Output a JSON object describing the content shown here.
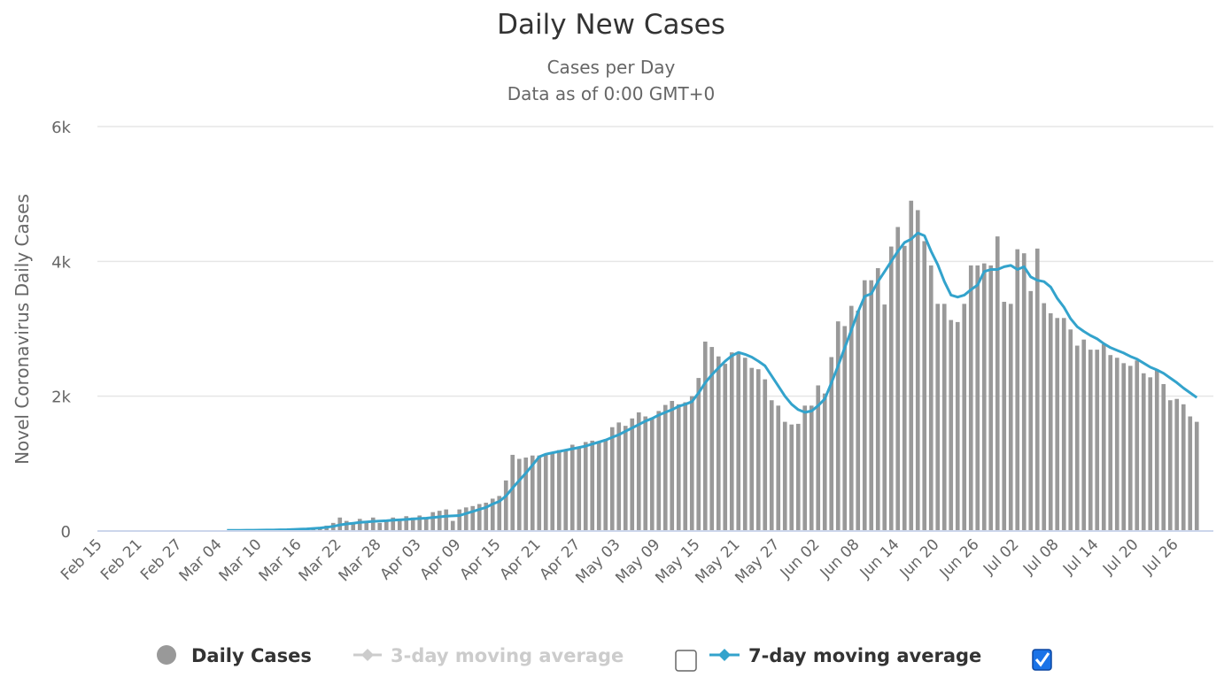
{
  "chart_data": {
    "type": "bar",
    "title": "Daily New Cases",
    "subtitle_lines": [
      "Cases per Day",
      "Data as of 0:00 GMT+0"
    ],
    "ylabel": "Novel Coronavirus Daily Cases",
    "xlabel": "",
    "ylim": [
      0,
      6000
    ],
    "yticks": [
      0,
      2000,
      4000,
      6000
    ],
    "ytick_labels": [
      "0",
      "2k",
      "4k",
      "6k"
    ],
    "grid": true,
    "x_start_date": "Feb 15",
    "x_days": 168,
    "xtick_labels": [
      "Feb 15",
      "Feb 21",
      "Feb 27",
      "Mar 04",
      "Mar 10",
      "Mar 16",
      "Mar 22",
      "Mar 28",
      "Apr 03",
      "Apr 09",
      "Apr 15",
      "Apr 21",
      "Apr 27",
      "May 03",
      "May 09",
      "May 15",
      "May 21",
      "May 27",
      "Jun 02",
      "Jun 08",
      "Jun 14",
      "Jun 20",
      "Jun 26",
      "Jul 02",
      "Jul 08",
      "Jul 14",
      "Jul 20",
      "Jul 26"
    ],
    "xtick_every_days": 6,
    "series": [
      {
        "name": "Daily Cases",
        "type": "bar",
        "color": "#999999",
        "start_day_index": 19,
        "values": [
          10,
          5,
          10,
          15,
          10,
          20,
          15,
          20,
          30,
          25,
          40,
          30,
          40,
          50,
          60,
          80,
          120,
          200,
          150,
          110,
          180,
          150,
          200,
          120,
          160,
          200,
          180,
          220,
          200,
          230,
          200,
          280,
          300,
          320,
          150,
          320,
          350,
          370,
          400,
          420,
          480,
          520,
          750,
          1130,
          1070,
          1090,
          1120,
          1120,
          1140,
          1150,
          1200,
          1190,
          1280,
          1240,
          1320,
          1340,
          1330,
          1360,
          1540,
          1610,
          1560,
          1670,
          1760,
          1700,
          1680,
          1780,
          1870,
          1930,
          1880,
          1910,
          2000,
          2270,
          2810,
          2730,
          2590,
          2480,
          2650,
          2640,
          2570,
          2420,
          2400,
          2250,
          1940,
          1860,
          1620,
          1580,
          1590,
          1860,
          1860,
          2160,
          2040,
          2580,
          3110,
          3040,
          3340,
          3270,
          3720,
          3720,
          3900,
          3360,
          4220,
          4510,
          4230,
          4900,
          4760,
          4300,
          3940,
          3370,
          3370,
          3130,
          3100,
          3370,
          3940,
          3940,
          3970,
          3940,
          4370,
          3400,
          3370,
          4180,
          4120,
          3560,
          4190,
          3380,
          3230,
          3160,
          3160,
          2990,
          2750,
          2840,
          2690,
          2690,
          2770,
          2610,
          2570,
          2490,
          2450,
          2530,
          2340,
          2280,
          2390,
          2180,
          1940,
          1960,
          1880,
          1700,
          1620
        ]
      },
      {
        "name": "3-day moving average",
        "type": "line",
        "color": "#cccccc",
        "visible": false,
        "values": []
      },
      {
        "name": "7-day moving average",
        "type": "line",
        "color": "#33a3cc",
        "start_day_index": 19,
        "values": [
          10,
          10,
          10,
          12,
          12,
          13,
          14,
          15,
          18,
          20,
          24,
          27,
          32,
          38,
          45,
          55,
          70,
          90,
          105,
          115,
          128,
          135,
          143,
          148,
          152,
          160,
          165,
          172,
          178,
          185,
          190,
          200,
          210,
          220,
          225,
          230,
          260,
          290,
          320,
          350,
          400,
          440,
          520,
          640,
          750,
          860,
          980,
          1100,
          1140,
          1160,
          1180,
          1200,
          1220,
          1240,
          1260,
          1290,
          1320,
          1350,
          1390,
          1430,
          1480,
          1530,
          1580,
          1630,
          1670,
          1720,
          1760,
          1800,
          1850,
          1880,
          1920,
          2050,
          2200,
          2320,
          2420,
          2520,
          2600,
          2650,
          2620,
          2580,
          2520,
          2450,
          2300,
          2150,
          2000,
          1880,
          1800,
          1760,
          1780,
          1860,
          1960,
          2200,
          2450,
          2720,
          2980,
          3250,
          3480,
          3520,
          3700,
          3850,
          4000,
          4150,
          4280,
          4330,
          4420,
          4380,
          4150,
          3950,
          3700,
          3500,
          3470,
          3500,
          3580,
          3650,
          3850,
          3880,
          3880,
          3920,
          3940,
          3880,
          3920,
          3770,
          3720,
          3700,
          3620,
          3450,
          3320,
          3150,
          3030,
          2960,
          2900,
          2850,
          2780,
          2720,
          2680,
          2640,
          2590,
          2550,
          2490,
          2430,
          2390,
          2340,
          2270,
          2200,
          2120,
          2050,
          1980
        ]
      }
    ],
    "legend": {
      "placement": "bottom",
      "items": [
        {
          "label": "Daily Cases",
          "color": "#999999",
          "marker": "circle",
          "active": true
        },
        {
          "label": "3-day moving average",
          "color": "#cccccc",
          "marker": "diamond-line",
          "active": false,
          "checked": false
        },
        {
          "label": "7-day moving average",
          "color": "#33a3cc",
          "marker": "diamond-line",
          "active": true,
          "checked": true
        }
      ]
    }
  }
}
